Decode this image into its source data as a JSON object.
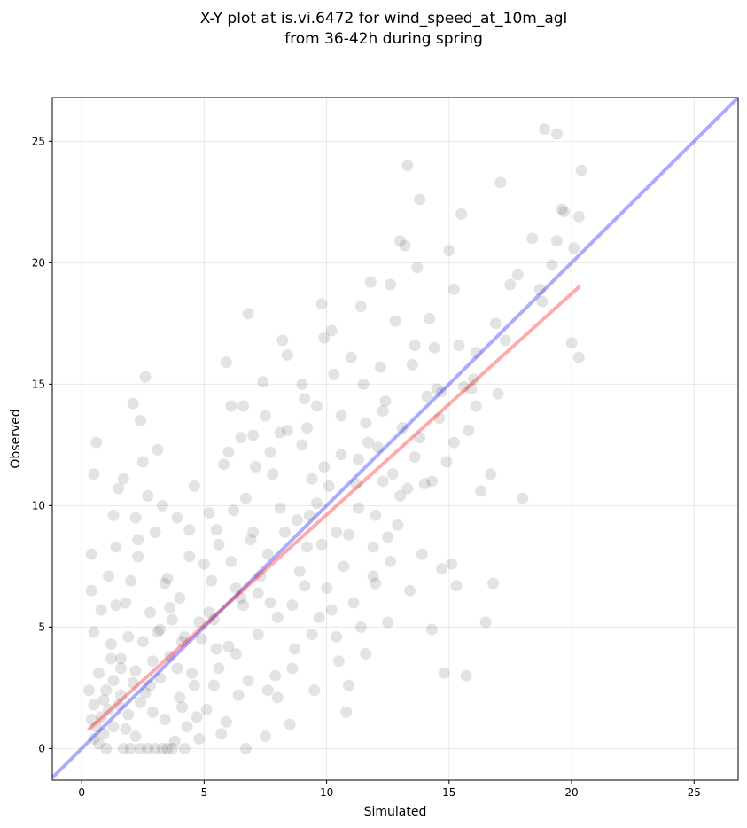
{
  "chart_data": {
    "type": "scatter",
    "title_line1": "X-Y plot at is.vi.6472 for wind_speed_at_10m_agl",
    "title_line2": "from 36-42h during spring",
    "xlabel": "Simulated",
    "ylabel": "Observed",
    "xlim": [
      -1.2,
      26.8
    ],
    "ylim": [
      -1.3,
      26.8
    ],
    "xticks": [
      0,
      5,
      10,
      15,
      20,
      25
    ],
    "yticks": [
      0,
      5,
      10,
      15,
      20,
      25
    ],
    "grid": true,
    "colors": {
      "points": "#000000",
      "one_to_one": "#0000ff",
      "regression": "#ff0000",
      "grid": "#d8d8d8"
    },
    "one_to_one_line": {
      "x": [
        -1.2,
        26.8
      ],
      "y": [
        -1.2,
        26.8
      ]
    },
    "regression_line": {
      "x": [
        0.3,
        20.3
      ],
      "y": [
        0.8,
        19.0
      ]
    },
    "points": [
      [
        0.6,
        12.6
      ],
      [
        0.5,
        11.3
      ],
      [
        0.4,
        8.0
      ],
      [
        0.4,
        6.5
      ],
      [
        0.5,
        4.8
      ],
      [
        0.3,
        2.4
      ],
      [
        0.4,
        1.2
      ],
      [
        0.5,
        0.4
      ],
      [
        0.7,
        3.1
      ],
      [
        0.8,
        5.7
      ],
      [
        0.9,
        2.0
      ],
      [
        1.0,
        0.0
      ],
      [
        1.1,
        7.1
      ],
      [
        1.2,
        4.3
      ],
      [
        1.3,
        9.6
      ],
      [
        1.4,
        8.3
      ],
      [
        1.5,
        10.7
      ],
      [
        1.6,
        3.3
      ],
      [
        1.7,
        11.1
      ],
      [
        1.8,
        6.0
      ],
      [
        2.0,
        0.0
      ],
      [
        2.1,
        14.2
      ],
      [
        2.2,
        9.5
      ],
      [
        2.3,
        7.9
      ],
      [
        2.4,
        13.5
      ],
      [
        2.5,
        11.8
      ],
      [
        2.6,
        15.3
      ],
      [
        2.7,
        10.4
      ],
      [
        2.8,
        2.6
      ],
      [
        3.0,
        8.9
      ],
      [
        3.1,
        12.3
      ],
      [
        3.3,
        10.0
      ],
      [
        3.4,
        6.8
      ],
      [
        3.5,
        0.0
      ],
      [
        3.7,
        5.3
      ],
      [
        3.9,
        9.5
      ],
      [
        4.0,
        2.1
      ],
      [
        4.2,
        0.0
      ],
      [
        4.4,
        7.9
      ],
      [
        4.6,
        10.8
      ],
      [
        5.2,
        9.7
      ],
      [
        5.4,
        5.3
      ],
      [
        5.6,
        3.3
      ],
      [
        5.8,
        11.7
      ],
      [
        5.9,
        15.9
      ],
      [
        6.1,
        14.1
      ],
      [
        6.3,
        6.6
      ],
      [
        6.5,
        12.8
      ],
      [
        6.7,
        10.3
      ],
      [
        6.8,
        17.9
      ],
      [
        7.0,
        12.9
      ],
      [
        7.2,
        6.4
      ],
      [
        7.4,
        15.1
      ],
      [
        7.6,
        8.0
      ],
      [
        7.8,
        11.3
      ],
      [
        8.0,
        2.1
      ],
      [
        8.2,
        16.8
      ],
      [
        8.4,
        13.1
      ],
      [
        8.6,
        5.9
      ],
      [
        8.8,
        9.4
      ],
      [
        9.0,
        15.0
      ],
      [
        9.2,
        8.3
      ],
      [
        9.4,
        11.1
      ],
      [
        9.6,
        14.1
      ],
      [
        9.8,
        18.3
      ],
      [
        10.0,
        6.6
      ],
      [
        10.2,
        17.2
      ],
      [
        10.4,
        4.6
      ],
      [
        10.6,
        12.1
      ],
      [
        10.8,
        1.5
      ],
      [
        11.0,
        16.1
      ],
      [
        11.2,
        10.9
      ],
      [
        11.4,
        18.2
      ],
      [
        11.6,
        3.9
      ],
      [
        11.8,
        19.2
      ],
      [
        12.0,
        6.8
      ],
      [
        12.2,
        15.7
      ],
      [
        12.5,
        5.2
      ],
      [
        12.6,
        19.1
      ],
      [
        12.7,
        11.3
      ],
      [
        12.8,
        17.6
      ],
      [
        13.0,
        20.9
      ],
      [
        13.2,
        20.7
      ],
      [
        13.3,
        24.0
      ],
      [
        13.4,
        6.5
      ],
      [
        13.6,
        16.6
      ],
      [
        13.7,
        19.8
      ],
      [
        13.8,
        22.6
      ],
      [
        14.0,
        10.9
      ],
      [
        14.2,
        17.7
      ],
      [
        14.3,
        4.9
      ],
      [
        14.5,
        14.8
      ],
      [
        14.7,
        7.4
      ],
      [
        14.8,
        3.1
      ],
      [
        15.0,
        20.5
      ],
      [
        15.1,
        7.6
      ],
      [
        15.2,
        18.9
      ],
      [
        15.3,
        6.7
      ],
      [
        15.5,
        22.0
      ],
      [
        15.7,
        3.0
      ],
      [
        15.8,
        13.1
      ],
      [
        16.0,
        15.2
      ],
      [
        16.3,
        10.6
      ],
      [
        16.5,
        5.2
      ],
      [
        16.7,
        11.3
      ],
      [
        16.8,
        6.8
      ],
      [
        17.1,
        23.3
      ],
      [
        17.3,
        16.8
      ],
      [
        17.5,
        19.1
      ],
      [
        17.8,
        19.5
      ],
      [
        18.0,
        10.3
      ],
      [
        18.4,
        21.0
      ],
      [
        18.7,
        18.9
      ],
      [
        18.9,
        25.5
      ],
      [
        19.2,
        19.9
      ],
      [
        19.4,
        20.9
      ],
      [
        19.4,
        25.3
      ],
      [
        19.6,
        22.2
      ],
      [
        19.7,
        22.1
      ],
      [
        20.0,
        16.7
      ],
      [
        20.1,
        20.6
      ],
      [
        20.3,
        16.1
      ],
      [
        20.3,
        21.9
      ],
      [
        20.4,
        23.8
      ],
      [
        18.8,
        18.4
      ],
      [
        16.9,
        17.5
      ],
      [
        17.0,
        14.6
      ],
      [
        16.1,
        16.3
      ],
      [
        15.9,
        14.8
      ],
      [
        14.6,
        13.6
      ],
      [
        12.3,
        13.9
      ],
      [
        11.7,
        12.6
      ],
      [
        10.9,
        8.8
      ],
      [
        9.6,
        10.1
      ],
      [
        8.9,
        7.3
      ],
      [
        7.7,
        6.0
      ],
      [
        6.9,
        8.6
      ],
      [
        6.0,
        4.2
      ],
      [
        5.3,
        6.9
      ],
      [
        4.8,
        5.2
      ],
      [
        4.1,
        4.4
      ],
      [
        3.6,
        3.8
      ],
      [
        3.2,
        2.9
      ],
      [
        2.9,
        3.6
      ],
      [
        2.4,
        1.9
      ],
      [
        2.1,
        2.7
      ],
      [
        1.9,
        1.4
      ],
      [
        1.6,
        2.2
      ],
      [
        1.3,
        0.9
      ],
      [
        1.1,
        1.6
      ],
      [
        0.9,
        0.6
      ],
      [
        0.7,
        0.2
      ],
      [
        1.5,
        1.8
      ],
      [
        2.6,
        2.3
      ],
      [
        3.4,
        1.2
      ],
      [
        4.5,
        3.1
      ],
      [
        5.5,
        4.1
      ],
      [
        6.6,
        5.9
      ],
      [
        7.3,
        7.1
      ],
      [
        8.3,
        8.9
      ],
      [
        9.3,
        9.6
      ],
      [
        10.1,
        10.8
      ],
      [
        11.3,
        11.9
      ],
      [
        12.1,
        12.4
      ],
      [
        13.1,
        13.2
      ],
      [
        14.1,
        14.5
      ],
      [
        13.6,
        12.0
      ],
      [
        12.9,
        9.2
      ],
      [
        11.9,
        8.3
      ],
      [
        10.7,
        7.5
      ],
      [
        9.7,
        5.4
      ],
      [
        8.7,
        4.1
      ],
      [
        7.9,
        3.0
      ],
      [
        6.4,
        2.2
      ],
      [
        5.1,
        1.6
      ],
      [
        4.3,
        0.9
      ],
      [
        3.8,
        0.3
      ],
      [
        2.2,
        0.5
      ],
      [
        3.1,
        4.8
      ],
      [
        4.0,
        6.2
      ],
      [
        5.0,
        7.6
      ],
      [
        6.2,
        9.8
      ],
      [
        7.1,
        11.6
      ],
      [
        8.1,
        13.0
      ],
      [
        9.1,
        14.4
      ],
      [
        10.3,
        15.4
      ],
      [
        11.5,
        15.0
      ],
      [
        12.4,
        14.3
      ],
      [
        13.5,
        15.8
      ],
      [
        14.4,
        16.5
      ],
      [
        15.4,
        16.6
      ],
      [
        14.9,
        11.8
      ],
      [
        13.9,
        8.0
      ],
      [
        12.6,
        7.7
      ],
      [
        11.1,
        6.0
      ],
      [
        10.5,
        3.6
      ],
      [
        9.5,
        2.4
      ],
      [
        8.5,
        1.0
      ],
      [
        7.5,
        0.5
      ],
      [
        6.7,
        0.0
      ],
      [
        5.7,
        0.6
      ],
      [
        4.7,
        1.3
      ],
      [
        3.3,
        0.0
      ],
      [
        2.7,
        0.0
      ],
      [
        1.8,
        0.8
      ],
      [
        1.2,
        3.7
      ],
      [
        1.4,
        5.9
      ],
      [
        2.0,
        6.9
      ],
      [
        2.3,
        8.6
      ],
      [
        2.8,
        5.6
      ],
      [
        3.5,
        7.0
      ],
      [
        4.4,
        9.0
      ],
      [
        5.5,
        9.0
      ],
      [
        6.0,
        12.2
      ],
      [
        6.6,
        14.1
      ],
      [
        7.5,
        13.7
      ],
      [
        8.4,
        16.2
      ],
      [
        9.0,
        12.5
      ],
      [
        9.9,
        16.9
      ],
      [
        10.6,
        13.7
      ],
      [
        11.6,
        13.4
      ],
      [
        12.3,
        11.0
      ],
      [
        12.0,
        9.6
      ],
      [
        11.3,
        9.9
      ],
      [
        10.4,
        8.9
      ],
      [
        9.9,
        11.6
      ],
      [
        9.2,
        13.2
      ],
      [
        8.1,
        9.9
      ],
      [
        7.7,
        12.2
      ],
      [
        7.0,
        8.9
      ],
      [
        6.5,
        6.2
      ],
      [
        6.1,
        7.7
      ],
      [
        5.6,
        8.4
      ],
      [
        5.2,
        5.6
      ],
      [
        4.9,
        4.5
      ],
      [
        4.6,
        2.6
      ],
      [
        4.2,
        4.6
      ],
      [
        3.9,
        3.3
      ],
      [
        3.6,
        5.8
      ],
      [
        3.2,
        4.9
      ],
      [
        2.9,
        1.5
      ],
      [
        2.5,
        4.4
      ],
      [
        2.2,
        3.2
      ],
      [
        1.9,
        4.6
      ],
      [
        1.6,
        3.7
      ],
      [
        1.3,
        2.8
      ],
      [
        1.0,
        2.4
      ],
      [
        0.8,
        1.3
      ],
      [
        0.6,
        0.9
      ],
      [
        0.5,
        1.8
      ],
      [
        1.7,
        0.0
      ],
      [
        2.4,
        0.0
      ],
      [
        3.0,
        0.0
      ],
      [
        3.7,
        0.0
      ],
      [
        4.1,
        1.7
      ],
      [
        4.8,
        0.4
      ],
      [
        5.4,
        2.6
      ],
      [
        5.9,
        1.1
      ],
      [
        6.3,
        3.9
      ],
      [
        6.8,
        2.8
      ],
      [
        7.2,
        4.7
      ],
      [
        7.6,
        2.4
      ],
      [
        8.0,
        5.4
      ],
      [
        8.6,
        3.3
      ],
      [
        9.1,
        6.7
      ],
      [
        9.4,
        4.7
      ],
      [
        9.8,
        8.4
      ],
      [
        10.2,
        5.7
      ],
      [
        10.9,
        2.6
      ],
      [
        11.4,
        5.0
      ],
      [
        11.9,
        7.1
      ],
      [
        12.5,
        8.7
      ],
      [
        13.0,
        10.4
      ],
      [
        13.3,
        10.7
      ],
      [
        13.8,
        12.8
      ],
      [
        14.3,
        11.0
      ],
      [
        14.7,
        14.7
      ],
      [
        15.2,
        12.6
      ],
      [
        15.6,
        14.9
      ],
      [
        16.1,
        14.1
      ]
    ]
  }
}
